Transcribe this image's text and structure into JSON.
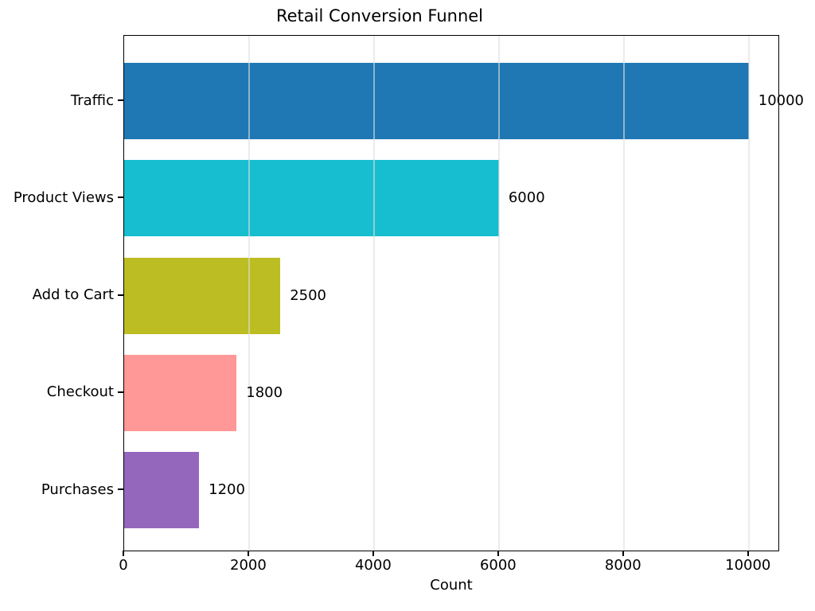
{
  "figure": {
    "background": "#ffffff",
    "text_color": "#000000"
  },
  "chart_data": {
    "type": "bar",
    "orientation": "horizontal",
    "title": "Retail Conversion Funnel",
    "xlabel": "Count",
    "ylabel": "",
    "categories": [
      "Traffic",
      "Product Views",
      "Add to Cart",
      "Checkout",
      "Purchases"
    ],
    "values": [
      10000,
      6000,
      2500,
      1800,
      1200
    ],
    "value_labels": [
      "10000",
      "6000",
      "2500",
      "1800",
      "1200"
    ],
    "bar_colors": [
      "#1f77b4",
      "#17becf",
      "#bcbd22",
      "#ff9896",
      "#9467bd"
    ],
    "x_ticks": [
      0,
      2000,
      4000,
      6000,
      8000,
      10000
    ],
    "x_tick_labels": [
      "0",
      "2000",
      "4000",
      "6000",
      "8000",
      "10000"
    ],
    "xlim": [
      0,
      10500
    ],
    "grid": true,
    "grid_axis": "x",
    "grid_color": "#ebebeb",
    "spine_color": "#000000",
    "legend": null
  }
}
